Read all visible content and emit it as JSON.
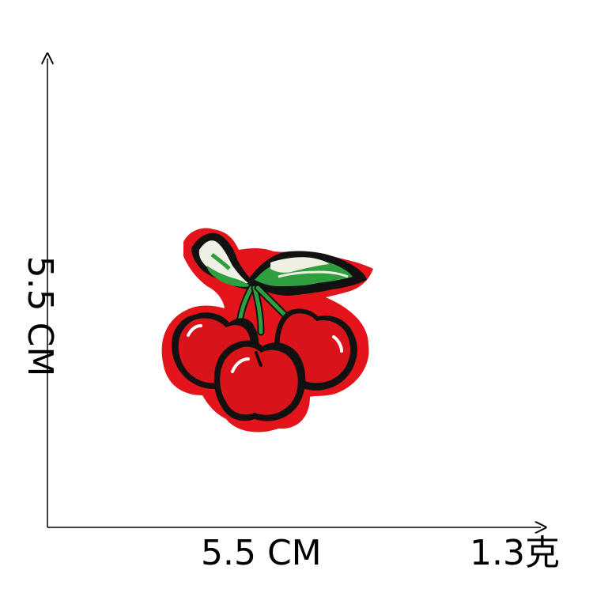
{
  "labels": {
    "height": "5.5 CM",
    "width": "5.5 CM",
    "weight": "1.3克"
  },
  "colors": {
    "axis": "#000000",
    "patch_border": "#e3151b",
    "cherry_fill": "#d8141a",
    "outline": "#111111",
    "leaf_green": "#2f9e3e",
    "leaf_light": "#f0efe4",
    "highlight": "#ffffff"
  },
  "patch": {
    "subject": "cherries-embroidered-patch"
  }
}
